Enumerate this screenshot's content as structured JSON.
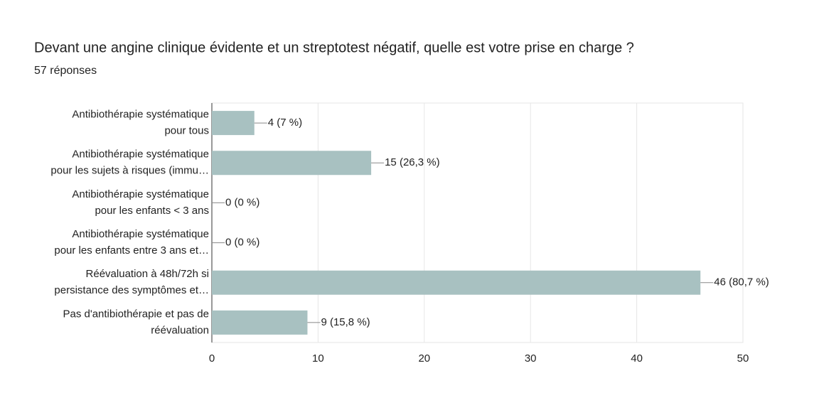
{
  "chart_data": {
    "type": "hbar",
    "title": "Devant une angine clinique évidente et un streptotest négatif, quelle est votre prise en charge ?",
    "subtitle": "57 réponses",
    "categories": [
      [
        "Antibiothérapie systématique",
        "pour tous"
      ],
      [
        "Antibiothérapie systématique",
        "pour les sujets à risques (immu…"
      ],
      [
        "Antibiothérapie systématique",
        "pour les enfants < 3 ans"
      ],
      [
        "Antibiothérapie systématique",
        "pour les enfants entre 3 ans et…"
      ],
      [
        "Réévaluation à 48h/72h si",
        "persistance des symptômes et…"
      ],
      [
        "Pas d'antibiothérapie et pas de",
        "réévaluation"
      ]
    ],
    "values": [
      4,
      15,
      0,
      0,
      46,
      9
    ],
    "value_labels": [
      "4 (7 %)",
      "15 (26,3 %)",
      "0 (0 %)",
      "0 (0 %)",
      "46 (80,7 %)",
      "9 (15,8 %)"
    ],
    "color": "#a8c1c1",
    "xlim": [
      0,
      50
    ],
    "xticks": [
      0,
      10,
      20,
      30,
      40,
      50
    ],
    "grid": true
  }
}
